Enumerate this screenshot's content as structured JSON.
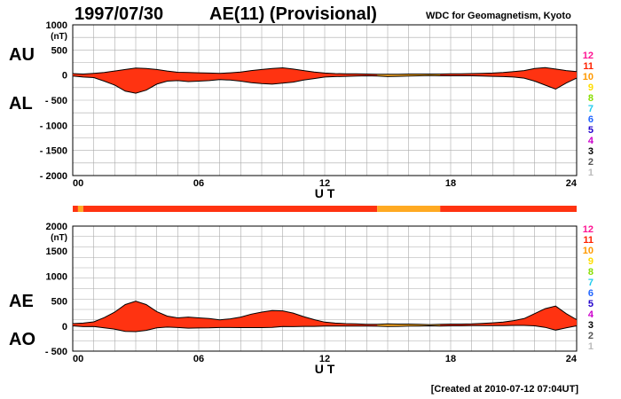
{
  "header": {
    "date": "1997/07/30",
    "title": "AE(11) (Provisional)",
    "source": "WDC for Geomagnetism, Kyoto"
  },
  "footer": {
    "created": "[Created at 2010-07-12 07:04UT]"
  },
  "colors": {
    "fill": "#ff3311",
    "fill_low": "#ffaa22",
    "line": "#000000",
    "grid": "#aaaaaa"
  },
  "scale_legend": [
    {
      "label": "12",
      "color": "#ff1493"
    },
    {
      "label": "11",
      "color": "#ff2200"
    },
    {
      "label": "10",
      "color": "#ff9900"
    },
    {
      "label": "9",
      "color": "#ffdd00"
    },
    {
      "label": "8",
      "color": "#88dd00"
    },
    {
      "label": "7",
      "color": "#22ccee"
    },
    {
      "label": "6",
      "color": "#2266ff"
    },
    {
      "label": "5",
      "color": "#2200cc"
    },
    {
      "label": "4",
      "color": "#cc00cc"
    },
    {
      "label": "3",
      "color": "#000000"
    },
    {
      "label": "2",
      "color": "#555555"
    },
    {
      "label": "1",
      "color": "#bbbbbb"
    }
  ],
  "station_bar": [
    {
      "start": 0.0,
      "end": 0.25,
      "color": "#ff3311"
    },
    {
      "start": 0.25,
      "end": 0.5,
      "color": "#ffaa22"
    },
    {
      "start": 0.5,
      "end": 14.5,
      "color": "#ff3311"
    },
    {
      "start": 14.5,
      "end": 17.5,
      "color": "#ffaa22"
    },
    {
      "start": 17.5,
      "end": 24.0,
      "color": "#ff3311"
    }
  ],
  "chart_data": [
    {
      "type": "area",
      "panel": "AU/AL",
      "label_upper": "AU",
      "label_lower": "AL",
      "unit": "(nT)",
      "xlabel": "U T",
      "xlim": [
        0,
        24
      ],
      "ylim": [
        -2000,
        1000
      ],
      "yticks": [
        1000,
        500,
        0,
        -500,
        -1000,
        -1500,
        -2000
      ],
      "ytick_labels": [
        "1000",
        "500",
        "0",
        "- 500",
        "- 1000",
        "- 1500",
        "- 2000"
      ],
      "xticks": [
        0,
        6,
        12,
        18,
        24
      ],
      "xtick_labels": [
        "00",
        "06",
        "12",
        "18",
        "24"
      ],
      "grid": true,
      "x": [
        0,
        0.5,
        1,
        1.5,
        2,
        2.5,
        3,
        3.5,
        4,
        4.5,
        5,
        5.5,
        6,
        6.5,
        7,
        7.5,
        8,
        8.5,
        9,
        9.5,
        10,
        10.5,
        11,
        11.5,
        12,
        12.5,
        13,
        13.5,
        14,
        14.5,
        15,
        15.5,
        16,
        16.5,
        17,
        17.5,
        18,
        18.5,
        19,
        19.5,
        20,
        20.5,
        21,
        21.5,
        22,
        22.5,
        23,
        23.5,
        24
      ],
      "series": [
        {
          "name": "AU",
          "values": [
            30,
            20,
            35,
            50,
            80,
            110,
            140,
            130,
            110,
            80,
            55,
            50,
            45,
            40,
            35,
            45,
            60,
            90,
            110,
            130,
            145,
            120,
            90,
            60,
            40,
            30,
            25,
            25,
            20,
            15,
            15,
            15,
            20,
            20,
            20,
            20,
            25,
            25,
            30,
            35,
            40,
            50,
            70,
            90,
            130,
            150,
            120,
            90,
            70
          ]
        },
        {
          "name": "AL",
          "values": [
            -20,
            -40,
            -50,
            -120,
            -200,
            -320,
            -360,
            -300,
            -180,
            -120,
            -110,
            -130,
            -120,
            -110,
            -90,
            -100,
            -120,
            -150,
            -170,
            -180,
            -160,
            -140,
            -100,
            -70,
            -40,
            -30,
            -25,
            -20,
            -15,
            -20,
            -30,
            -25,
            -20,
            -15,
            -10,
            -15,
            -15,
            -15,
            -15,
            -20,
            -25,
            -30,
            -40,
            -60,
            -120,
            -200,
            -280,
            -160,
            -60
          ]
        }
      ]
    },
    {
      "type": "area",
      "panel": "AE/AO",
      "label_upper": "AE",
      "label_lower": "AO",
      "unit": "(nT)",
      "xlabel": "U T",
      "xlim": [
        0,
        24
      ],
      "ylim": [
        -500,
        2000
      ],
      "yticks": [
        2000,
        1500,
        1000,
        500,
        0,
        -500
      ],
      "ytick_labels": [
        "2000",
        "1500",
        "1000",
        "500",
        "0",
        "- 500"
      ],
      "xticks": [
        0,
        6,
        12,
        18,
        24
      ],
      "xtick_labels": [
        "00",
        "06",
        "12",
        "18",
        "24"
      ],
      "grid": true,
      "x": [
        0,
        0.5,
        1,
        1.5,
        2,
        2.5,
        3,
        3.5,
        4,
        4.5,
        5,
        5.5,
        6,
        6.5,
        7,
        7.5,
        8,
        8.5,
        9,
        9.5,
        10,
        10.5,
        11,
        11.5,
        12,
        12.5,
        13,
        13.5,
        14,
        14.5,
        15,
        15.5,
        16,
        16.5,
        17,
        17.5,
        18,
        18.5,
        19,
        19.5,
        20,
        20.5,
        21,
        21.5,
        22,
        22.5,
        23,
        23.5,
        24
      ],
      "series": [
        {
          "name": "AE",
          "values": [
            50,
            60,
            85,
            170,
            280,
            430,
            500,
            430,
            290,
            200,
            165,
            180,
            165,
            150,
            125,
            145,
            180,
            240,
            280,
            310,
            305,
            260,
            190,
            130,
            80,
            60,
            50,
            45,
            35,
            35,
            45,
            40,
            40,
            35,
            30,
            35,
            40,
            40,
            45,
            55,
            65,
            80,
            110,
            150,
            250,
            350,
            400,
            250,
            130
          ]
        },
        {
          "name": "AO",
          "values": [
            5,
            -10,
            -8,
            -35,
            -60,
            -105,
            -110,
            -85,
            -35,
            -20,
            -28,
            -40,
            -38,
            -35,
            -28,
            -28,
            -30,
            -30,
            -30,
            -25,
            -8,
            -10,
            -5,
            -5,
            0,
            0,
            0,
            2,
            2,
            -2,
            -8,
            -5,
            0,
            2,
            5,
            2,
            5,
            5,
            8,
            8,
            8,
            10,
            15,
            15,
            5,
            -25,
            -80,
            -35,
            5
          ]
        }
      ]
    }
  ]
}
